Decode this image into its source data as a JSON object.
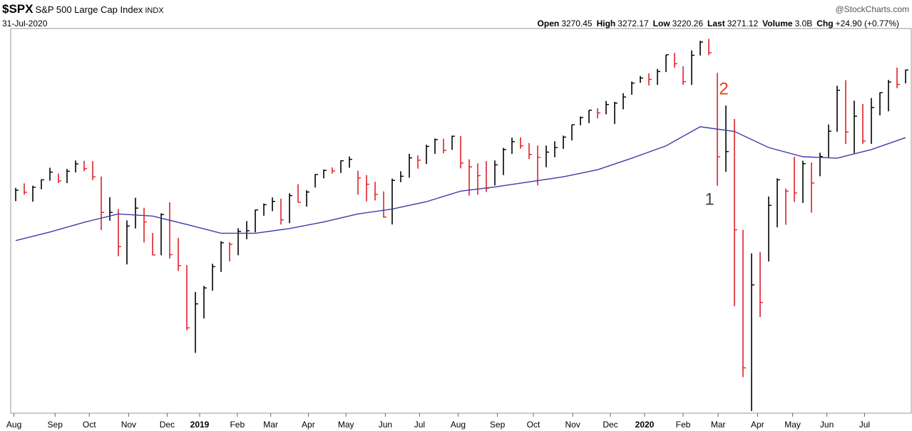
{
  "header": {
    "symbol": "$SPX",
    "name": "S&P 500 Large Cap Index",
    "exchange": "INDX",
    "date": "31-Jul-2020",
    "source": "@StockCharts.com",
    "stats": [
      {
        "label": "Open",
        "value": "3270.45"
      },
      {
        "label": "High",
        "value": "3272.17"
      },
      {
        "label": "Low",
        "value": "3220.26"
      },
      {
        "label": "Last",
        "value": "3271.12"
      },
      {
        "label": "Volume",
        "value": "3.0B"
      },
      {
        "label": "Chg",
        "value": "+24.90 (+0.77%)"
      }
    ]
  },
  "chart_data": {
    "type": "ohlc",
    "log": true,
    "ylim": [
      2180,
      3420
    ],
    "up_color": "#000000",
    "down_color": "#e0202a",
    "annotations": [
      "1",
      "2"
    ],
    "xticks": [
      {
        "value": -0.2,
        "label": "Aug"
      },
      {
        "value": 4.6,
        "label": "Sep"
      },
      {
        "value": 8.6,
        "label": "Oct"
      },
      {
        "value": 13.2,
        "label": "Nov"
      },
      {
        "value": 17.7,
        "label": "Dec"
      },
      {
        "value": 21.5,
        "label": "2019"
      },
      {
        "value": 25.9,
        "label": "Feb"
      },
      {
        "value": 29.8,
        "label": "Mar"
      },
      {
        "value": 34.2,
        "label": "Apr"
      },
      {
        "value": 38.6,
        "label": "May"
      },
      {
        "value": 43.2,
        "label": "Jun"
      },
      {
        "value": 47.2,
        "label": "Jul"
      },
      {
        "value": 51.7,
        "label": "Aug"
      },
      {
        "value": 56.3,
        "label": "Sep"
      },
      {
        "value": 60.5,
        "label": "Oct"
      },
      {
        "value": 65.1,
        "label": "Nov"
      },
      {
        "value": 69.5,
        "label": "Dec"
      },
      {
        "value": 73.5,
        "label": "2020"
      },
      {
        "value": 78,
        "label": "Feb"
      },
      {
        "value": 82.1,
        "label": "Mar"
      },
      {
        "value": 86.7,
        "label": "Apr"
      },
      {
        "value": 90.8,
        "label": "May"
      },
      {
        "value": 94.8,
        "label": "Jun"
      },
      {
        "value": 99.2,
        "label": "Jul"
      }
    ],
    "series": [
      {
        "close": [
          2840,
          2833,
          2850,
          2875,
          2901,
          2871,
          2904,
          2929,
          2913,
          2885,
          2767,
          2767,
          2658,
          2723,
          2781,
          2736,
          2632,
          2760,
          2633,
          2599,
          2416,
          2485,
          2532,
          2596,
          2670,
          2665,
          2706,
          2708,
          2775,
          2792,
          2803,
          2743,
          2822,
          2800,
          2834,
          2893,
          2907,
          2905,
          2940,
          2945,
          2881,
          2860,
          2826,
          2752,
          2873,
          2887,
          2950,
          2942,
          2990,
          3014,
          2976,
          3026,
          2932,
          2919,
          2889,
          2847,
          2926,
          2979,
          3007,
          2992,
          2962,
          2952,
          2970,
          2986,
          3023,
          3067,
          3093,
          3120,
          3110,
          3141,
          3146,
          3169,
          3221,
          3240,
          3235,
          3265,
          3330,
          3295,
          3226,
          3328,
          3380,
          3338,
          2954,
          2972,
          2711,
          2305,
          2541,
          2489,
          2790,
          2875,
          2837,
          2831,
          2930,
          2864,
          2955,
          3044,
          3194,
          3041,
          3098,
          3009,
          3130,
          3185,
          3225,
          3216,
          3271
        ],
        "high": [
          2848,
          2863,
          2855,
          2876,
          2916,
          2896,
          2912,
          2941,
          2940,
          2939,
          2886,
          2817,
          2778,
          2741,
          2815,
          2782,
          2701,
          2764,
          2800,
          2685,
          2601,
          2520,
          2538,
          2605,
          2675,
          2672,
          2716,
          2739,
          2776,
          2796,
          2816,
          2812,
          2830,
          2860,
          2840,
          2894,
          2910,
          2917,
          2941,
          2955,
          2906,
          2891,
          2868,
          2836,
          2879,
          2904,
          2964,
          2959,
          2996,
          3018,
          3017,
          3028,
          3027,
          2945,
          2931,
          2939,
          2941,
          2985,
          3021,
          3022,
          3002,
          2993,
          2993,
          3008,
          3028,
          3067,
          3097,
          3120,
          3127,
          3154,
          3151,
          3183,
          3227,
          3248,
          3258,
          3275,
          3330,
          3337,
          3285,
          3347,
          3385,
          3393,
          3260,
          3137,
          3088,
          2711,
          2637,
          2641,
          2819,
          2880,
          2846,
          2954,
          2940,
          2934,
          2968,
          3068,
          3211,
          3232,
          3155,
          3143,
          3165,
          3186,
          3233,
          3280,
          3272
        ],
        "low": [
          2804,
          2825,
          2802,
          2843,
          2872,
          2864,
          2864,
          2900,
          2904,
          2874,
          2710,
          2740,
          2628,
          2603,
          2715,
          2671,
          2631,
          2631,
          2621,
          2583,
          2409,
          2346,
          2443,
          2524,
          2580,
          2612,
          2631,
          2681,
          2703,
          2756,
          2771,
          2728,
          2732,
          2800,
          2786,
          2849,
          2880,
          2896,
          2898,
          2916,
          2825,
          2803,
          2806,
          2750,
          2728,
          2867,
          2882,
          2913,
          2929,
          2964,
          2966,
          2978,
          2914,
          2822,
          2825,
          2834,
          2856,
          2891,
          2964,
          2982,
          2946,
          2856,
          2918,
          2952,
          2981,
          3011,
          3065,
          3073,
          3090,
          3105,
          3070,
          3123,
          3177,
          3222,
          3212,
          3214,
          3263,
          3280,
          3214,
          3214,
          3327,
          3328,
          2855,
          2902,
          2478,
          2280,
          2191,
          2447,
          2612,
          2719,
          2727,
          2801,
          2798,
          2766,
          2887,
          2952,
          3042,
          2999,
          2966,
          2999,
          2999,
          3101,
          3116,
          3202,
          3220
        ]
      }
    ],
    "moving_average": {
      "color": "#3c3ca8",
      "x": [
        0,
        4,
        8,
        12,
        16,
        20,
        24,
        28,
        32,
        36,
        40,
        44,
        48,
        52,
        56,
        60,
        64,
        68,
        72,
        76,
        80,
        84,
        88,
        92,
        96,
        100,
        104
      ],
      "values": [
        2677,
        2704,
        2735,
        2762,
        2755,
        2728,
        2700,
        2700,
        2715,
        2736,
        2762,
        2778,
        2802,
        2837,
        2851,
        2868,
        2885,
        2909,
        2949,
        2992,
        3060,
        3043,
        2986,
        2954,
        2949,
        2979,
        3021
      ]
    }
  }
}
